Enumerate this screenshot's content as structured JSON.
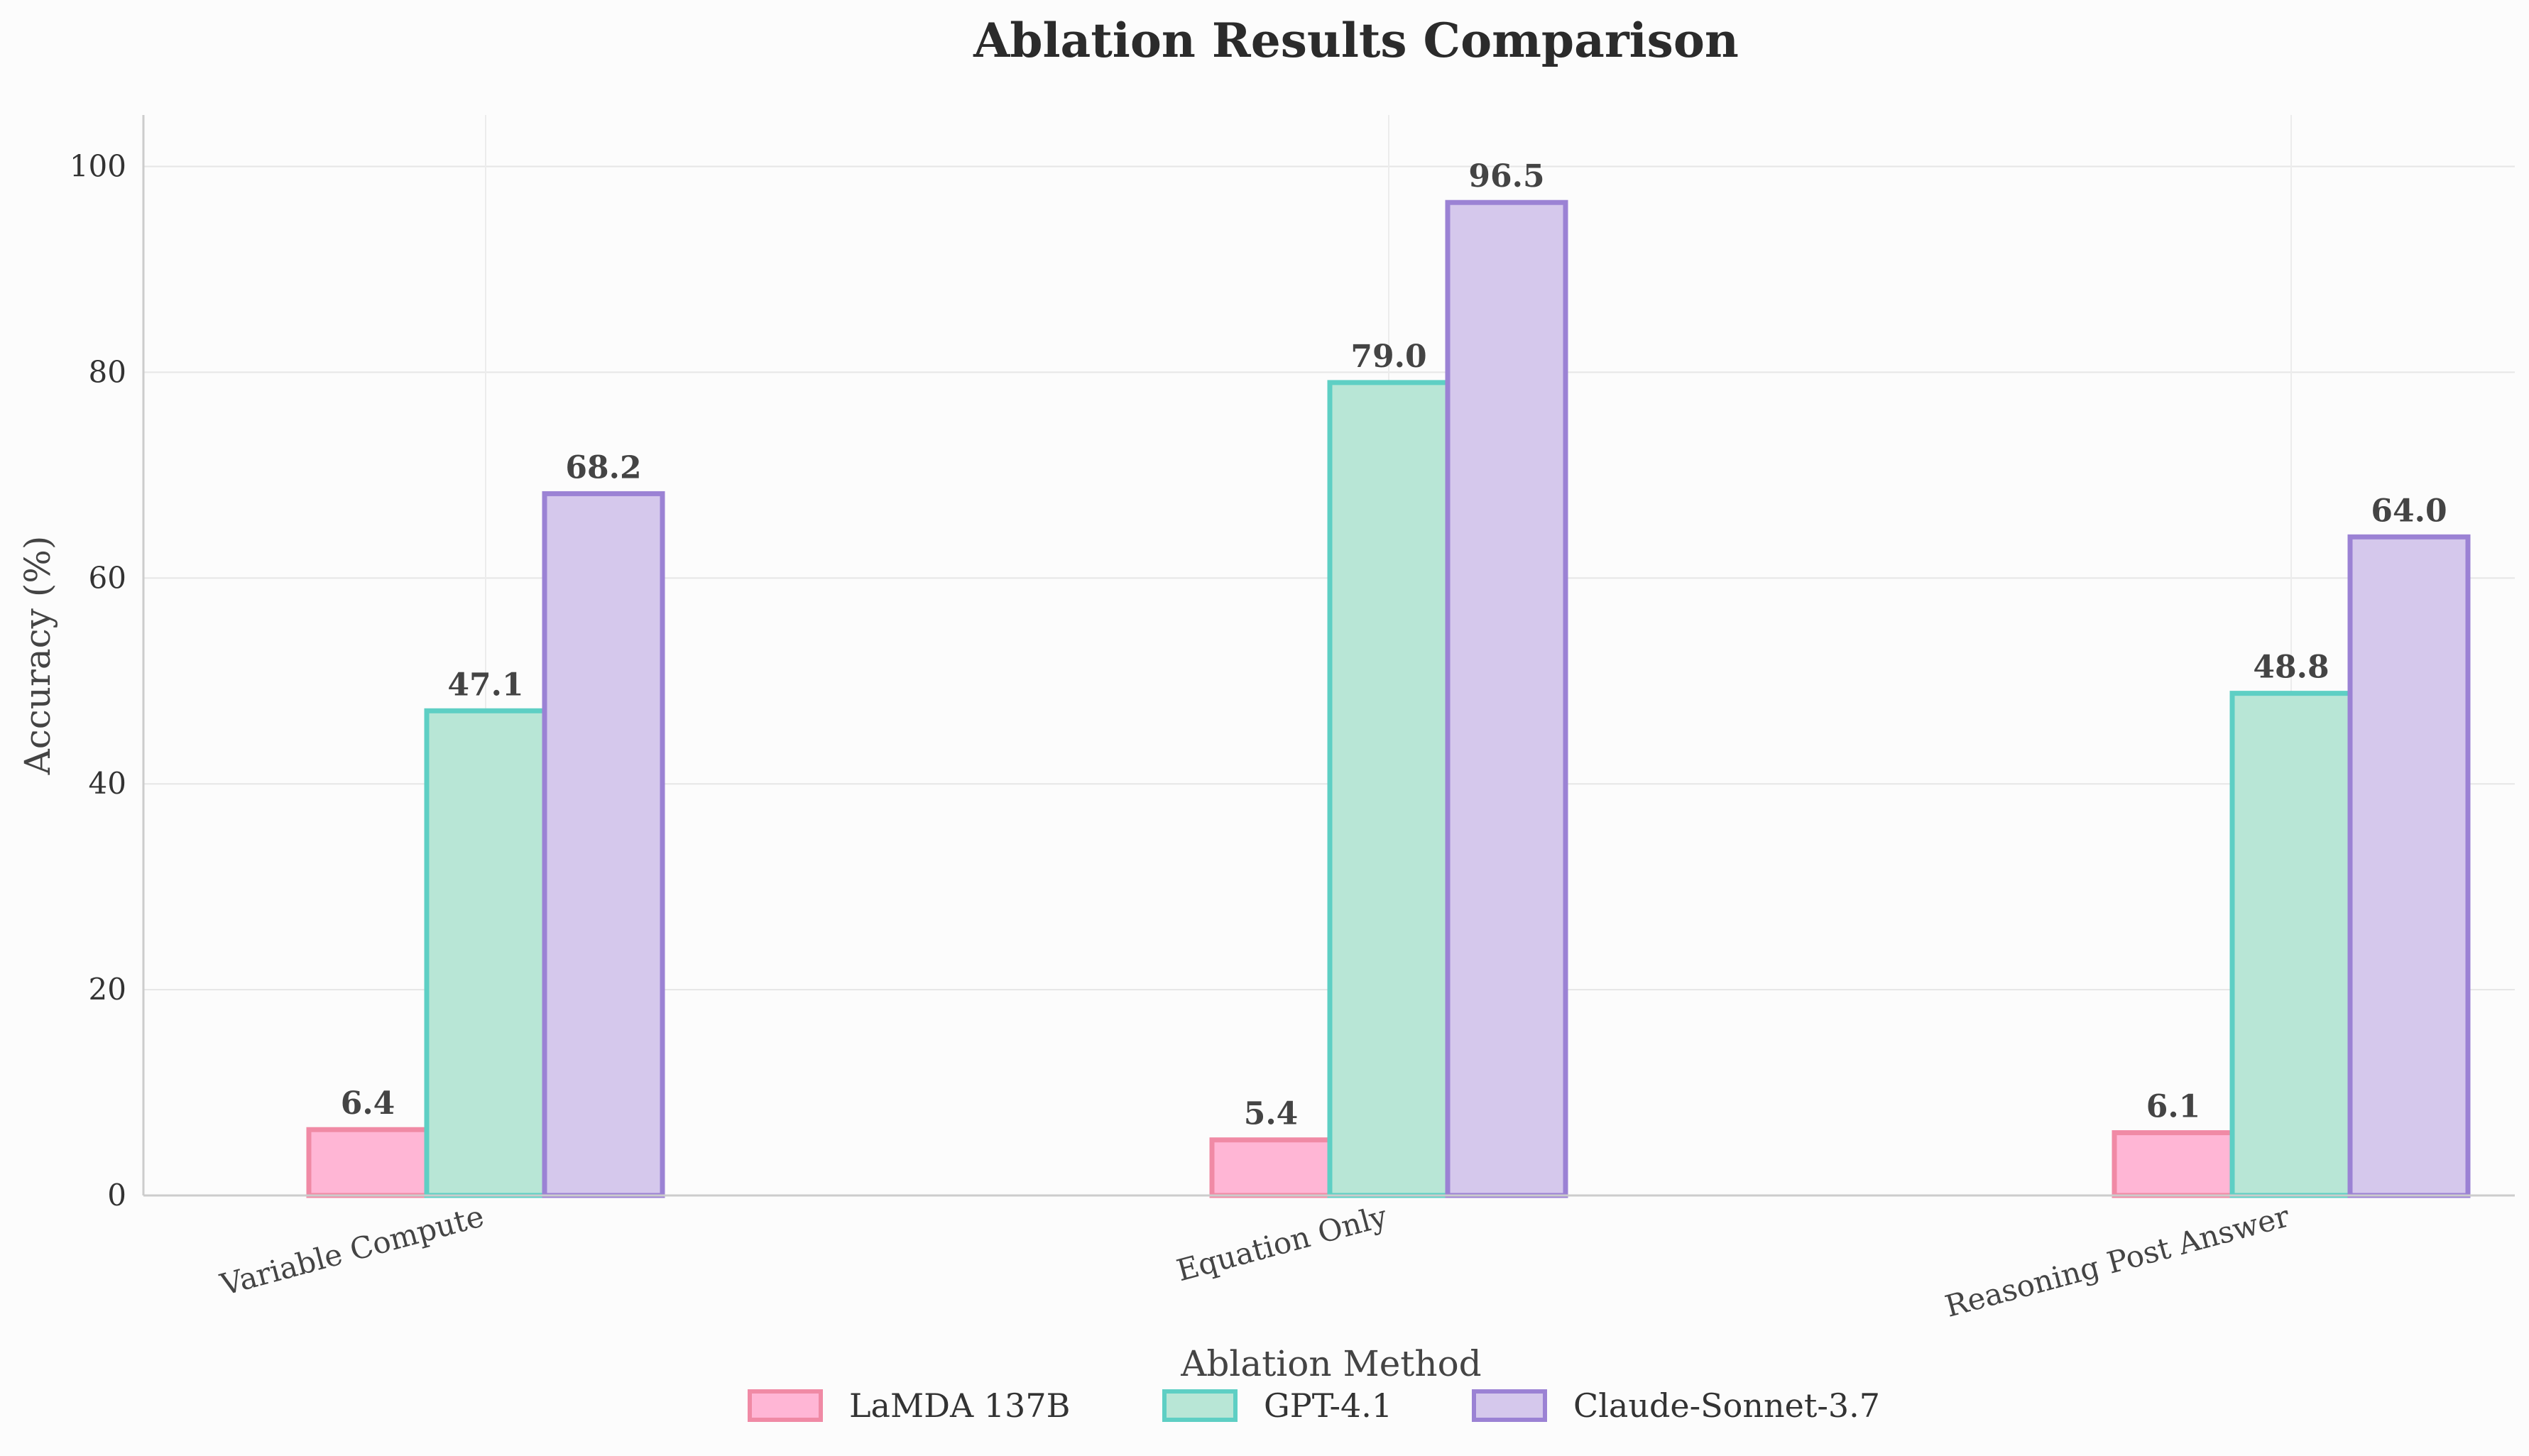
{
  "chart_data": {
    "type": "bar",
    "title": "Ablation Results Comparison",
    "xlabel": "Ablation Method",
    "ylabel": "Accuracy (%)",
    "categories": [
      "Variable Compute",
      "Equation Only",
      "Reasoning Post Answer"
    ],
    "series": [
      {
        "name": "LaMDA 137B",
        "values": [
          6.4,
          5.4,
          6.1
        ],
        "fill": "#ffb6d5",
        "stroke": "#f08aa5"
      },
      {
        "name": "GPT-4.1",
        "values": [
          47.1,
          79.0,
          48.8
        ],
        "fill": "#b8e6d6",
        "stroke": "#5ecfc4"
      },
      {
        "name": "Claude-Sonnet-3.7",
        "values": [
          68.2,
          96.5,
          64.0
        ],
        "fill": "#d5c8ec",
        "stroke": "#9b82d4"
      }
    ],
    "ylim": [
      0,
      105
    ],
    "yticks": [
      0,
      20,
      40,
      60,
      80,
      100
    ],
    "grid": true,
    "legend_position": "bottom-center"
  }
}
